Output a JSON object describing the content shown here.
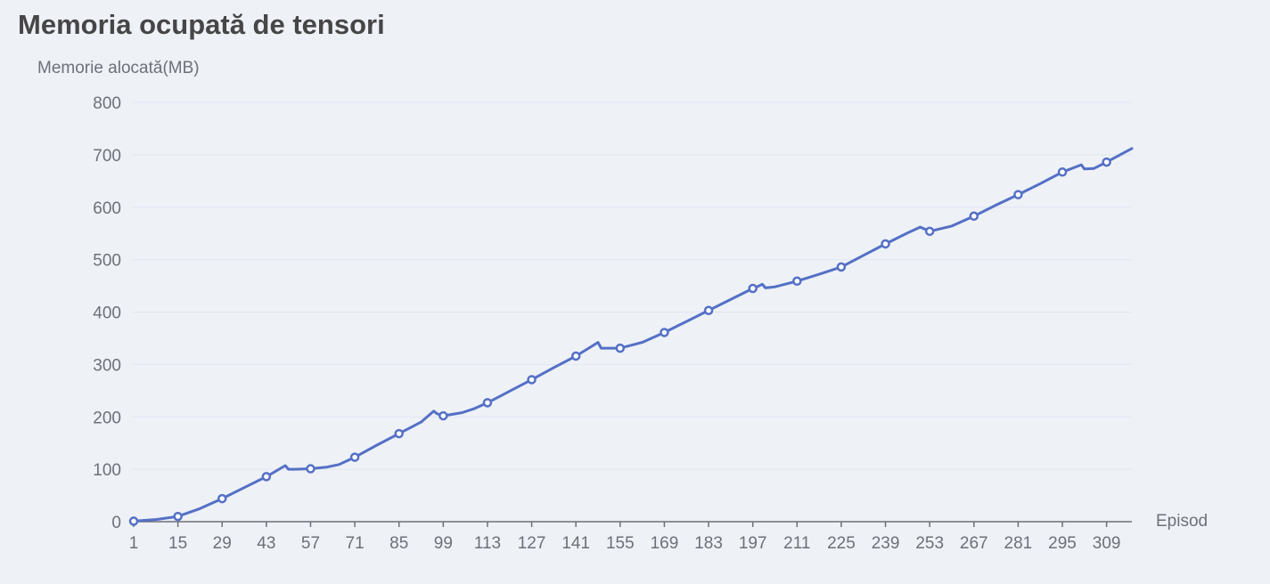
{
  "chart_data": {
    "type": "line",
    "title": "Memoria ocupată de tensori",
    "xlabel": "Episod",
    "ylabel": "Memorie alocată(MB)",
    "ylim": [
      0,
      800
    ],
    "xlim": [
      1,
      317
    ],
    "y_ticks": [
      0,
      100,
      200,
      300,
      400,
      500,
      600,
      700,
      800
    ],
    "x_ticks": [
      1,
      15,
      29,
      43,
      57,
      71,
      85,
      99,
      113,
      127,
      141,
      155,
      169,
      183,
      197,
      211,
      225,
      239,
      253,
      267,
      281,
      295,
      309
    ],
    "grid": true,
    "legend": "none",
    "colors": {
      "series": "#5470c6",
      "grid": "#e0e6f1",
      "axis": "#6e7079",
      "background": "#eef1f6"
    },
    "series": [
      {
        "points": [
          [
            1,
            1
          ],
          [
            8,
            4
          ],
          [
            15,
            10
          ],
          [
            22,
            25
          ],
          [
            29,
            44
          ],
          [
            36,
            65
          ],
          [
            43,
            86
          ],
          [
            49,
            107
          ],
          [
            50,
            100
          ],
          [
            52,
            100
          ],
          [
            57,
            101
          ],
          [
            62,
            104
          ],
          [
            66,
            109
          ],
          [
            71,
            123
          ],
          [
            78,
            146
          ],
          [
            85,
            168
          ],
          [
            92,
            190
          ],
          [
            96,
            211
          ],
          [
            97,
            206
          ],
          [
            99,
            202
          ],
          [
            105,
            208
          ],
          [
            109,
            216
          ],
          [
            113,
            227
          ],
          [
            120,
            249
          ],
          [
            127,
            271
          ],
          [
            134,
            294
          ],
          [
            141,
            316
          ],
          [
            148,
            342
          ],
          [
            149,
            331
          ],
          [
            152,
            331
          ],
          [
            155,
            331
          ],
          [
            162,
            342
          ],
          [
            169,
            361
          ],
          [
            176,
            382
          ],
          [
            183,
            403
          ],
          [
            190,
            424
          ],
          [
            197,
            445
          ],
          [
            199,
            450
          ],
          [
            200,
            453
          ],
          [
            201,
            446
          ],
          [
            204,
            448
          ],
          [
            211,
            459
          ],
          [
            218,
            472
          ],
          [
            225,
            486
          ],
          [
            232,
            508
          ],
          [
            239,
            530
          ],
          [
            246,
            551
          ],
          [
            250,
            562
          ],
          [
            253,
            554
          ],
          [
            260,
            564
          ],
          [
            267,
            583
          ],
          [
            274,
            604
          ],
          [
            281,
            624
          ],
          [
            288,
            645
          ],
          [
            295,
            667
          ],
          [
            301,
            681
          ],
          [
            302,
            673
          ],
          [
            305,
            674
          ],
          [
            309,
            686
          ],
          [
            317,
            712
          ]
        ],
        "markers_at": [
          1,
          15,
          29,
          43,
          57,
          71,
          85,
          99,
          113,
          127,
          141,
          155,
          169,
          183,
          197,
          211,
          225,
          239,
          253,
          267,
          281,
          295,
          309
        ],
        "marker": "hollow-circle"
      }
    ]
  }
}
